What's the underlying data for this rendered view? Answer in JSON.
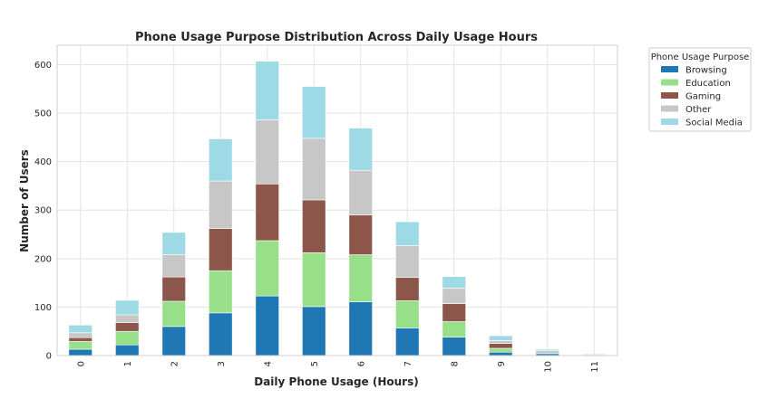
{
  "chart_data": {
    "type": "bar",
    "stacked": true,
    "title": "Phone Usage Purpose Distribution Across Daily Usage Hours",
    "xlabel": "Daily Phone Usage (Hours)",
    "ylabel": "Number of Users",
    "categories": [
      "0",
      "1",
      "2",
      "3",
      "4",
      "5",
      "6",
      "7",
      "8",
      "9",
      "10",
      "11"
    ],
    "ylim": [
      0,
      640
    ],
    "yticks": [
      0,
      100,
      200,
      300,
      400,
      500,
      600
    ],
    "grid": true,
    "legend": {
      "title": "Phone Usage Purpose",
      "placement": "outside-top-right"
    },
    "series": [
      {
        "name": "Browsing",
        "color": "#1f77b4",
        "values": [
          13,
          22,
          60,
          88,
          123,
          101,
          111,
          57,
          38,
          7,
          4,
          1
        ]
      },
      {
        "name": "Education",
        "color": "#98df8a",
        "values": [
          16,
          28,
          52,
          87,
          114,
          111,
          97,
          56,
          32,
          8,
          0,
          0
        ]
      },
      {
        "name": "Gaming",
        "color": "#8c564b",
        "values": [
          8,
          18,
          50,
          87,
          117,
          109,
          82,
          48,
          37,
          10,
          0,
          0
        ]
      },
      {
        "name": "Other",
        "color": "#c7c7c7",
        "values": [
          10,
          16,
          46,
          98,
          132,
          127,
          92,
          66,
          32,
          6,
          6,
          0
        ]
      },
      {
        "name": "Social Media",
        "color": "#9edae5",
        "values": [
          16,
          30,
          46,
          87,
          121,
          107,
          87,
          49,
          24,
          10,
          3,
          2
        ]
      }
    ]
  }
}
